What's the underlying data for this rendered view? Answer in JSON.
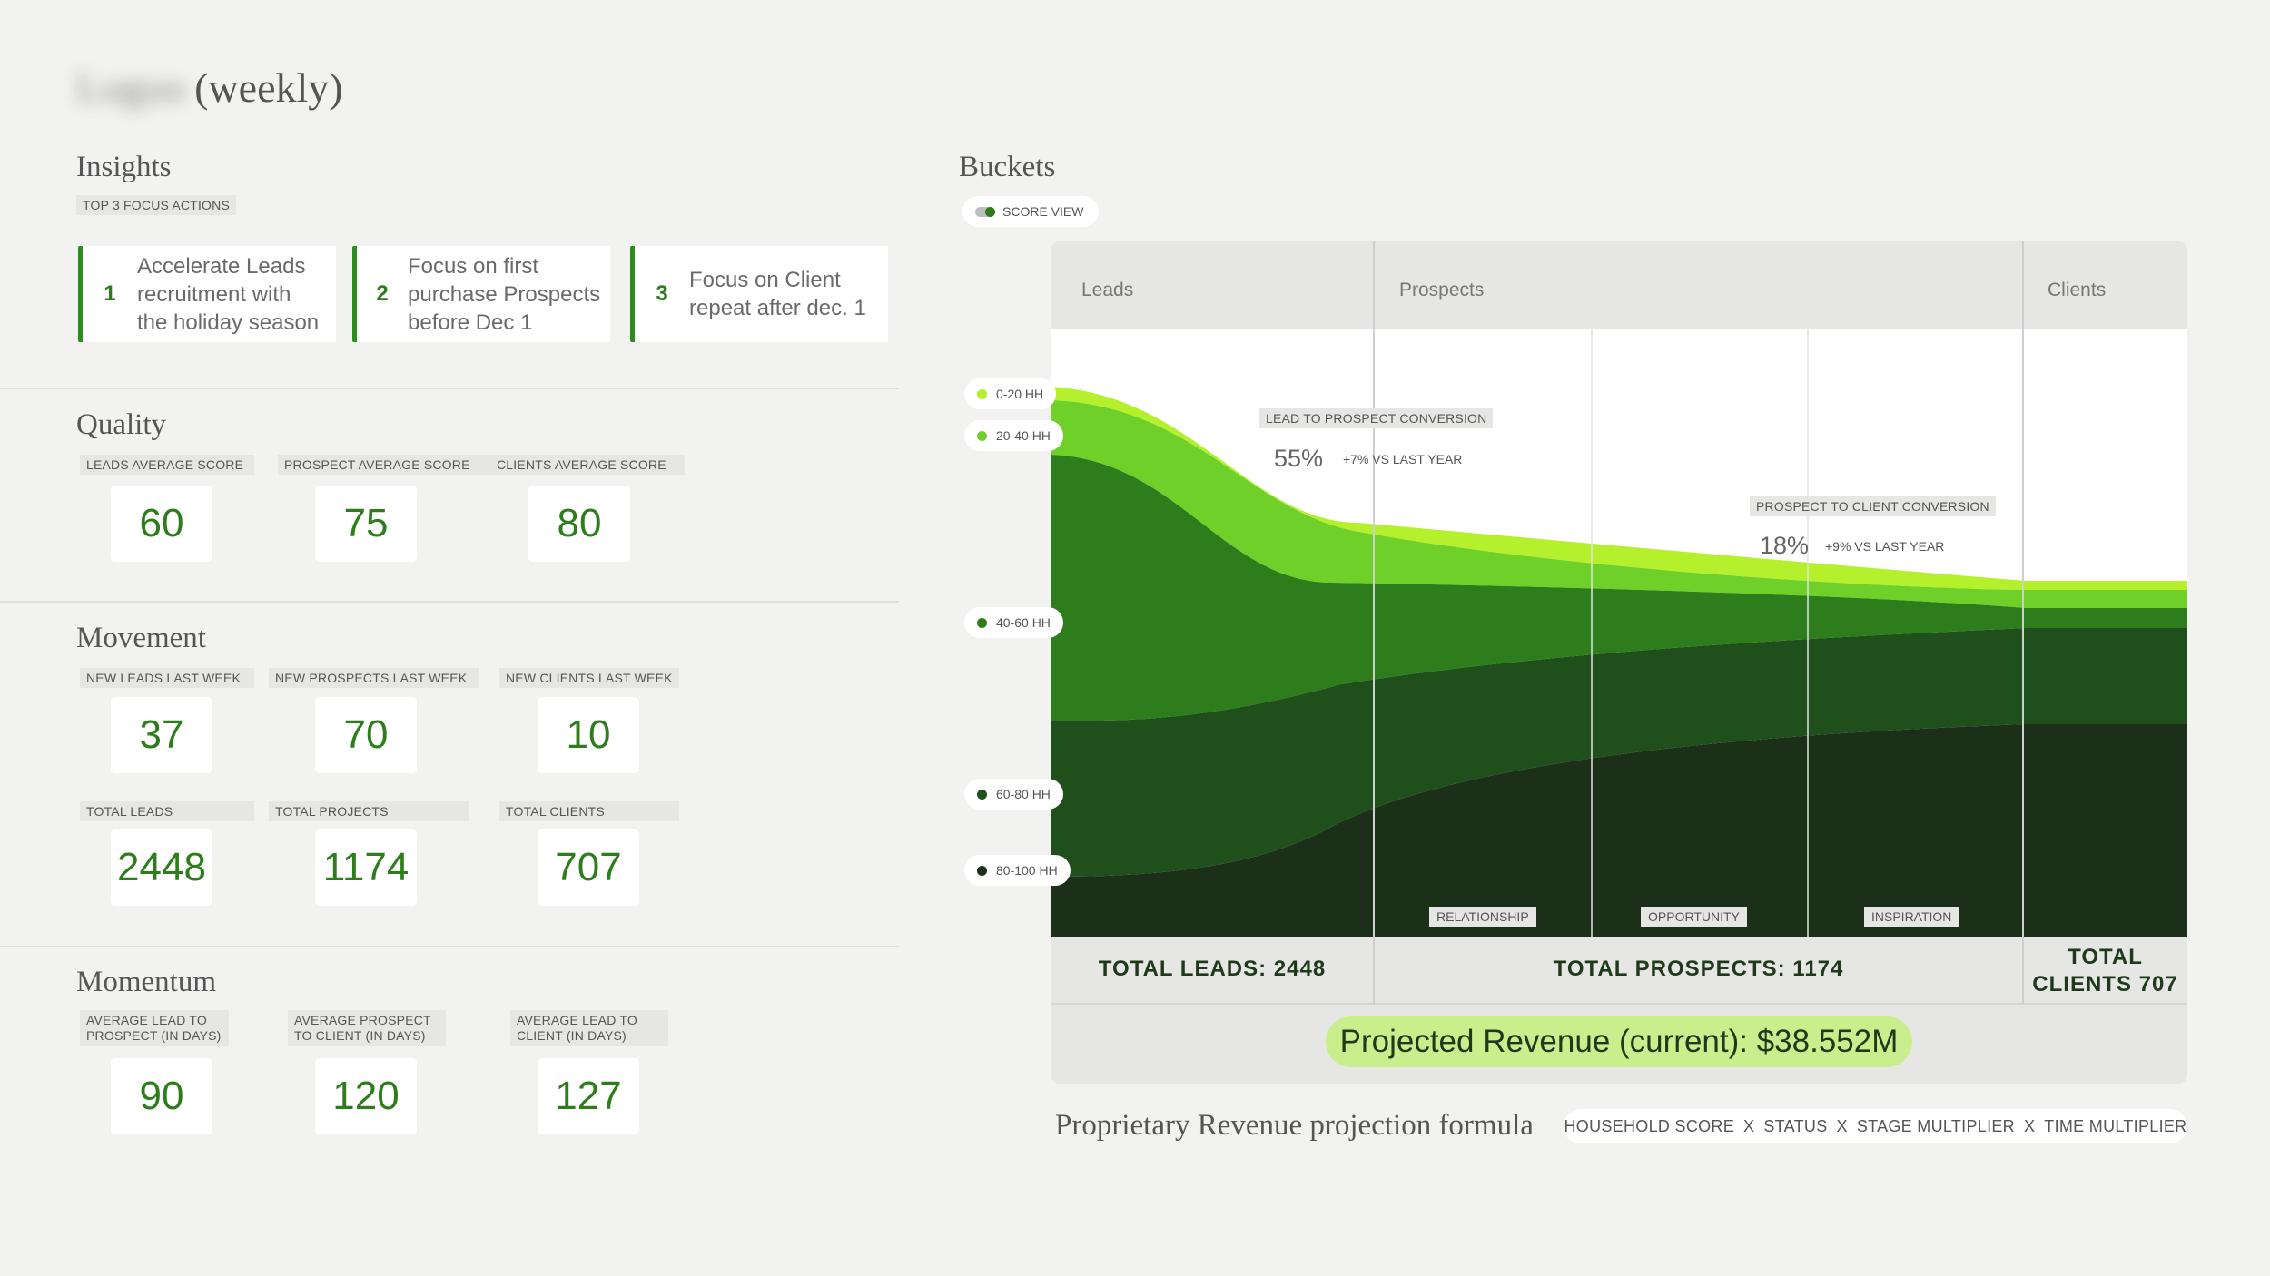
{
  "header": {
    "logo_text": "Logoo",
    "title_suffix": "(weekly)"
  },
  "insights": {
    "title": "Insights",
    "subtitle": "TOP 3 FOCUS ACTIONS",
    "actions": [
      {
        "num": "1",
        "lines": [
          "Accelerate Leads",
          "recruitment with",
          "the holiday season"
        ]
      },
      {
        "num": "2",
        "lines": [
          "Focus on first",
          "purchase Prospects",
          "before Dec 1"
        ]
      },
      {
        "num": "3",
        "lines": [
          "Focus on Client",
          "repeat after dec. 1"
        ]
      }
    ]
  },
  "quality": {
    "title": "Quality",
    "metrics": [
      {
        "label": "LEADS AVERAGE SCORE",
        "value": "60"
      },
      {
        "label": "PROSPECT AVERAGE SCORE",
        "value": "75"
      },
      {
        "label": "CLIENTS AVERAGE SCORE",
        "value": "80"
      }
    ]
  },
  "movement": {
    "title": "Movement",
    "new": [
      {
        "label": "NEW LEADS LAST WEEK",
        "value": "37"
      },
      {
        "label": "NEW PROSPECTS LAST WEEK",
        "value": "70"
      },
      {
        "label": "NEW CLIENTS LAST WEEK",
        "value": "10"
      }
    ],
    "totals": [
      {
        "label": "TOTAL LEADS",
        "value": "2448"
      },
      {
        "label": "TOTAL PROJECTS",
        "value": "1174"
      },
      {
        "label": "TOTAL CLIENTS",
        "value": "707"
      }
    ]
  },
  "momentum": {
    "title": "Momentum",
    "metrics": [
      {
        "label_lines": [
          "AVERAGE LEAD TO",
          "PROSPECT (IN DAYS)"
        ],
        "value": "90"
      },
      {
        "label_lines": [
          "AVERAGE PROSPECT",
          "TO CLIENT (IN DAYS)"
        ],
        "value": "120"
      },
      {
        "label_lines": [
          "AVERAGE LEAD TO",
          "CLIENT (IN DAYS)"
        ],
        "value": "127"
      }
    ]
  },
  "buckets": {
    "title": "Buckets",
    "toggle_label": "SCORE VIEW",
    "columns": [
      "Leads",
      "Prospects",
      "Clients"
    ],
    "hh_bands": [
      {
        "label": "0-20 HH",
        "color": "#b4f02c"
      },
      {
        "label": "20-40 HH",
        "color": "#6fd02a"
      },
      {
        "label": "40-60 HH",
        "color": "#2e7d1c"
      },
      {
        "label": "60-80 HH",
        "color": "#1f4f1a"
      },
      {
        "label": "80-100 HH",
        "color": "#1c2f19"
      }
    ],
    "conversions": [
      {
        "label": "LEAD TO PROSPECT CONVERSION",
        "pct": "55%",
        "delta": "+7% VS LAST YEAR"
      },
      {
        "label": "PROSPECT TO CLIENT CONVERSION",
        "pct": "18%",
        "delta": "+9% VS LAST YEAR"
      }
    ],
    "stages": [
      "RELATIONSHIP",
      "OPPORTUNITY",
      "INSPIRATION"
    ],
    "totals": {
      "leads": "TOTAL LEADS: 2448",
      "prospects": "TOTAL PROSPECTS: 1174",
      "clients_line1": "TOTAL",
      "clients_line2": "CLIENTS 707"
    },
    "revenue": "Projected Revenue (current): $38.552M"
  },
  "formula": {
    "title": "Proprietary Revenue projection formula",
    "terms": [
      "HOUSEHOLD SCORE",
      "STATUS",
      "STAGE MULTIPLIER",
      "TIME MULTIPLIER"
    ],
    "operator": "X"
  }
}
